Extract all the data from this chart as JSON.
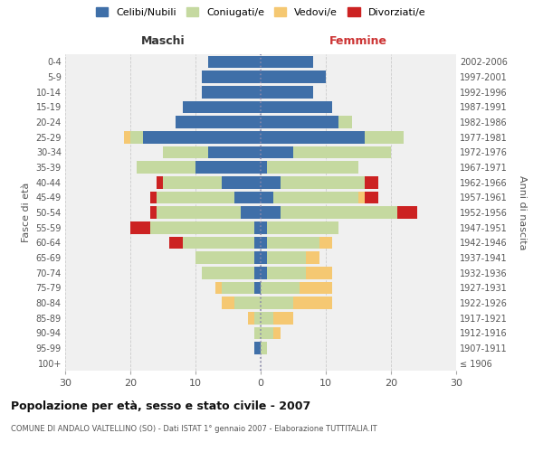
{
  "age_groups": [
    "100+",
    "95-99",
    "90-94",
    "85-89",
    "80-84",
    "75-79",
    "70-74",
    "65-69",
    "60-64",
    "55-59",
    "50-54",
    "45-49",
    "40-44",
    "35-39",
    "30-34",
    "25-29",
    "20-24",
    "15-19",
    "10-14",
    "5-9",
    "0-4"
  ],
  "birth_years": [
    "≤ 1906",
    "1907-1911",
    "1912-1916",
    "1917-1921",
    "1922-1926",
    "1927-1931",
    "1932-1936",
    "1937-1941",
    "1942-1946",
    "1947-1951",
    "1952-1956",
    "1957-1961",
    "1962-1966",
    "1967-1971",
    "1972-1976",
    "1977-1981",
    "1982-1986",
    "1987-1991",
    "1992-1996",
    "1997-2001",
    "2002-2006"
  ],
  "males": {
    "celibi": [
      0,
      1,
      0,
      0,
      0,
      1,
      1,
      1,
      1,
      1,
      3,
      4,
      6,
      10,
      8,
      18,
      13,
      12,
      9,
      9,
      8
    ],
    "coniugati": [
      0,
      0,
      1,
      1,
      4,
      5,
      8,
      9,
      11,
      16,
      13,
      12,
      9,
      9,
      7,
      2,
      0,
      0,
      0,
      0,
      0
    ],
    "vedovi": [
      0,
      0,
      0,
      1,
      2,
      1,
      0,
      0,
      0,
      0,
      0,
      0,
      0,
      0,
      0,
      1,
      0,
      0,
      0,
      0,
      0
    ],
    "divorziati": [
      0,
      0,
      0,
      0,
      0,
      0,
      0,
      0,
      2,
      3,
      1,
      1,
      1,
      0,
      0,
      0,
      0,
      0,
      0,
      0,
      0
    ]
  },
  "females": {
    "nubili": [
      0,
      0,
      0,
      0,
      0,
      0,
      1,
      1,
      1,
      1,
      3,
      2,
      3,
      1,
      5,
      16,
      12,
      11,
      8,
      10,
      8
    ],
    "coniugate": [
      0,
      1,
      2,
      2,
      5,
      6,
      6,
      6,
      8,
      11,
      18,
      13,
      13,
      14,
      15,
      6,
      2,
      0,
      0,
      0,
      0
    ],
    "vedove": [
      0,
      0,
      1,
      3,
      6,
      5,
      4,
      2,
      2,
      0,
      0,
      1,
      0,
      0,
      0,
      0,
      0,
      0,
      0,
      0,
      0
    ],
    "divorziate": [
      0,
      0,
      0,
      0,
      0,
      0,
      0,
      0,
      0,
      0,
      3,
      2,
      2,
      0,
      0,
      0,
      0,
      0,
      0,
      0,
      0
    ]
  },
  "colors": {
    "celibi_nubili": "#3f6fa8",
    "coniugati": "#c5d9a0",
    "vedovi": "#f5c872",
    "divorziati": "#cc2222"
  },
  "xlim": 30,
  "title": "Popolazione per età, sesso e stato civile - 2007",
  "subtitle": "COMUNE DI ANDALO VALTELLINO (SO) - Dati ISTAT 1° gennaio 2007 - Elaborazione TUTTITALIA.IT",
  "ylabel_left": "Fasce di età",
  "ylabel_right": "Anni di nascita",
  "xlabel_left": "Maschi",
  "xlabel_right": "Femmine",
  "bg_color": "#ffffff",
  "plot_bg_color": "#f0f0f0"
}
